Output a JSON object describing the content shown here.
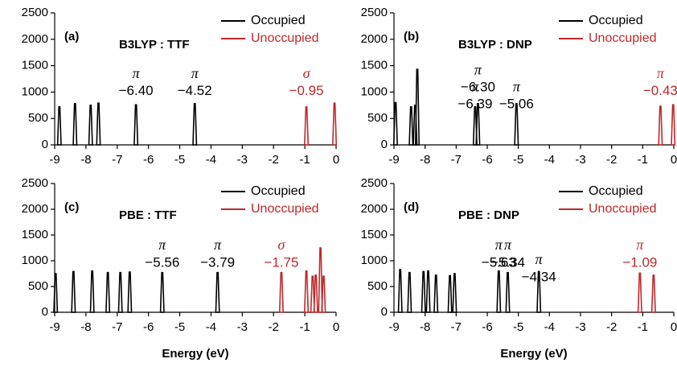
{
  "chart_data": [
    {
      "type": "spectrum",
      "panel": "(a)",
      "title": "B3LYP : TTF",
      "xlim": [
        -9,
        0
      ],
      "xticks": [
        -9,
        -8,
        -7,
        -6,
        -5,
        -4,
        -3,
        -2,
        -1,
        0
      ],
      "ylim": [
        0,
        2500
      ],
      "yticks": [
        0,
        500,
        1000,
        1500,
        2000,
        2500
      ],
      "series": [
        {
          "name": "Occupied",
          "color": "#000000",
          "x": [
            -8.85,
            -8.35,
            -7.85,
            -7.6,
            -6.4,
            -4.52
          ],
          "values": [
            720,
            780,
            750,
            790,
            760,
            780
          ],
          "annotations": [
            {
              "symbol": "π",
              "value": -6.4,
              "label": "−6.40"
            },
            {
              "symbol": "π",
              "value": -4.52,
              "label": "−4.52"
            }
          ]
        },
        {
          "name": "Unoccupied",
          "color": "#c0282a",
          "x": [
            -0.95,
            -0.05
          ],
          "values": [
            720,
            790
          ],
          "annotations": [
            {
              "symbol": "σ",
              "value": -0.95,
              "label": "−0.95"
            }
          ]
        }
      ]
    },
    {
      "type": "spectrum",
      "panel": "(b)",
      "title": "B3LYP : DNP",
      "xlim": [
        -9,
        0
      ],
      "xticks": [
        -9,
        -8,
        -7,
        -6,
        -5,
        -4,
        -3,
        -2,
        -1,
        0
      ],
      "ylim": [
        0,
        2500
      ],
      "yticks": [
        0,
        500,
        1000,
        1500,
        2000,
        2500
      ],
      "series": [
        {
          "name": "Occupied",
          "color": "#000000",
          "x": [
            -8.95,
            -8.45,
            -8.32,
            -8.25,
            -6.39,
            -6.3,
            -5.06
          ],
          "values": [
            800,
            720,
            750,
            1430,
            720,
            780,
            780
          ],
          "annotations": [
            {
              "symbol": "π",
              "value": -6.39,
              "label": "−6.39"
            },
            {
              "symbol": "π",
              "value": -6.3,
              "label": "−6.30"
            },
            {
              "symbol": "π",
              "value": -5.06,
              "label": "−5.06"
            }
          ]
        },
        {
          "name": "Unoccupied",
          "color": "#c0282a",
          "x": [
            -0.43,
            -0.02
          ],
          "values": [
            730,
            760
          ],
          "annotations": [
            {
              "symbol": "π",
              "value": -0.43,
              "label": "−0.43"
            }
          ]
        }
      ]
    },
    {
      "type": "spectrum",
      "panel": "(c)",
      "title": "PBE : TTF",
      "xlabel": "Energy (eV)",
      "xlim": [
        -9,
        0
      ],
      "xticks": [
        -9,
        -8,
        -7,
        -6,
        -5,
        -4,
        -3,
        -2,
        -1,
        0
      ],
      "ylim": [
        0,
        2500
      ],
      "yticks": [
        0,
        500,
        1000,
        1500,
        2000,
        2500
      ],
      "series": [
        {
          "name": "Occupied",
          "color": "#000000",
          "x": [
            -8.97,
            -8.4,
            -7.8,
            -7.3,
            -6.9,
            -6.6,
            -5.56,
            -3.79
          ],
          "values": [
            750,
            790,
            800,
            770,
            770,
            780,
            770,
            770
          ],
          "annotations": [
            {
              "symbol": "π",
              "value": -5.56,
              "label": "−5.56"
            },
            {
              "symbol": "π",
              "value": -3.79,
              "label": "−3.79"
            }
          ]
        },
        {
          "name": "Unoccupied",
          "color": "#c0282a",
          "x": [
            -1.75,
            -0.95,
            -0.75,
            -0.65,
            -0.5,
            -0.4
          ],
          "values": [
            770,
            800,
            700,
            720,
            1250,
            700
          ],
          "annotations": [
            {
              "symbol": "σ",
              "value": -1.75,
              "label": "−1.75"
            }
          ]
        }
      ]
    },
    {
      "type": "spectrum",
      "panel": "(d)",
      "title": "PBE : DNP",
      "xlabel": "Energy (eV)",
      "xlim": [
        -9,
        0
      ],
      "xticks": [
        -9,
        -8,
        -7,
        -6,
        -5,
        -4,
        -3,
        -2,
        -1,
        0
      ],
      "ylim": [
        0,
        2500
      ],
      "yticks": [
        0,
        500,
        1000,
        1500,
        2000,
        2500
      ],
      "series": [
        {
          "name": "Occupied",
          "color": "#000000",
          "x": [
            -8.8,
            -8.5,
            -8.05,
            -7.9,
            -7.65,
            -7.2,
            -7.05,
            -5.63,
            -5.34,
            -4.34
          ],
          "values": [
            830,
            770,
            790,
            800,
            720,
            710,
            750,
            800,
            770,
            790
          ],
          "annotations": [
            {
              "symbol": "π",
              "value": -5.63,
              "label": "−5.63"
            },
            {
              "symbol": "π",
              "value": -5.34,
              "label": "−5.34"
            },
            {
              "symbol": "π",
              "value": -4.34,
              "label": "−4.34"
            }
          ]
        },
        {
          "name": "Unoccupied",
          "color": "#c0282a",
          "x": [
            -1.09,
            -0.65
          ],
          "values": [
            760,
            720
          ],
          "annotations": [
            {
              "symbol": "π",
              "value": -1.09,
              "label": "−1.09"
            }
          ]
        }
      ]
    }
  ]
}
